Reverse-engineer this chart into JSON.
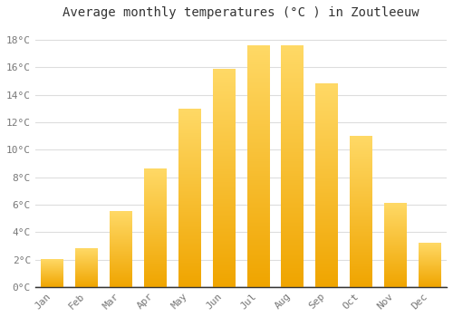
{
  "title": "Average monthly temperatures (°C ) in Zoutleeuw",
  "months": [
    "Jan",
    "Feb",
    "Mar",
    "Apr",
    "May",
    "Jun",
    "Jul",
    "Aug",
    "Sep",
    "Oct",
    "Nov",
    "Dec"
  ],
  "values": [
    2.0,
    2.8,
    5.5,
    8.6,
    13.0,
    15.9,
    17.6,
    17.6,
    14.8,
    11.0,
    6.1,
    3.2
  ],
  "bar_color_light": "#FFD966",
  "bar_color_dark": "#F0A500",
  "background_color": "#FFFFFF",
  "plot_bg_color": "#FFFFFF",
  "grid_color": "#DDDDDD",
  "text_color": "#777777",
  "ylim": [
    0,
    19
  ],
  "yticks": [
    0,
    2,
    4,
    6,
    8,
    10,
    12,
    14,
    16,
    18
  ],
  "ytick_labels": [
    "0°C",
    "2°C",
    "4°C",
    "6°C",
    "8°C",
    "10°C",
    "12°C",
    "14°C",
    "16°C",
    "18°C"
  ],
  "title_fontsize": 10,
  "tick_fontsize": 8,
  "font_family": "monospace"
}
